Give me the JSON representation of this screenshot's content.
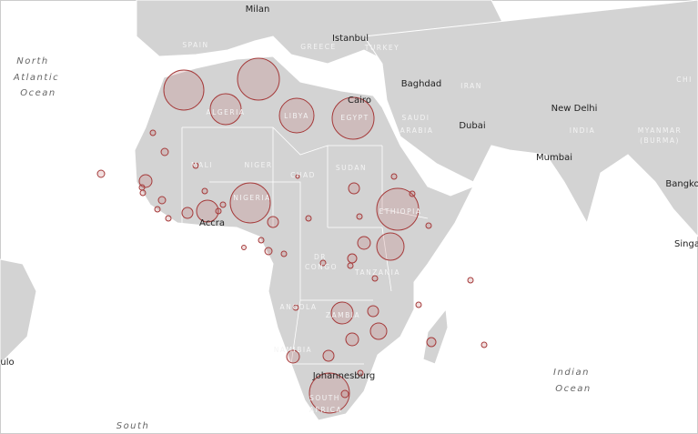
{
  "labels": [
    "Milan",
    "Istanbul",
    "SPAIN",
    "GREECE",
    "TURKEY",
    "Baghdad",
    "IRAN",
    "CHI",
    "Cairo",
    "Dubai",
    "SAUDI",
    "ARABIA",
    "New Delhi",
    "INDIA",
    "MYANMAR",
    "(BURMA)",
    "Mumbai",
    "Bangko",
    "Singa",
    "North",
    "Atlantic",
    "Ocean",
    "ALGERIA",
    "LIBYA",
    "EGYPT",
    "MALI",
    "NIGER",
    "CHAD",
    "SUDAN",
    "NIGERIA",
    "ETHIOPIA",
    "Accra",
    "DR",
    "CONGO",
    "TANZANIA",
    "ANGOLA",
    "ZAMBIA",
    "NAMIBIA",
    "Johannesburg",
    "SOUTH",
    "AFRICA",
    "Indian",
    "Ocean",
    "South",
    "ulo"
  ],
  "bubbles": {
    "values": [
      484,
      529,
      289,
      361,
      529,
      484,
      529,
      225,
      144,
      49,
      16,
      9,
      16,
      9,
      9,
      16,
      9,
      9,
      36,
      9,
      9,
      9,
      36,
      6,
      9,
      16,
      9,
      9,
      36,
      9,
      9,
      9,
      9,
      49,
      25,
      9,
      9,
      9,
      9,
      9,
      144,
      36,
      9,
      81,
      49,
      25,
      9,
      49,
      36,
      484,
      16,
      9,
      4,
      9
    ]
  }
}
